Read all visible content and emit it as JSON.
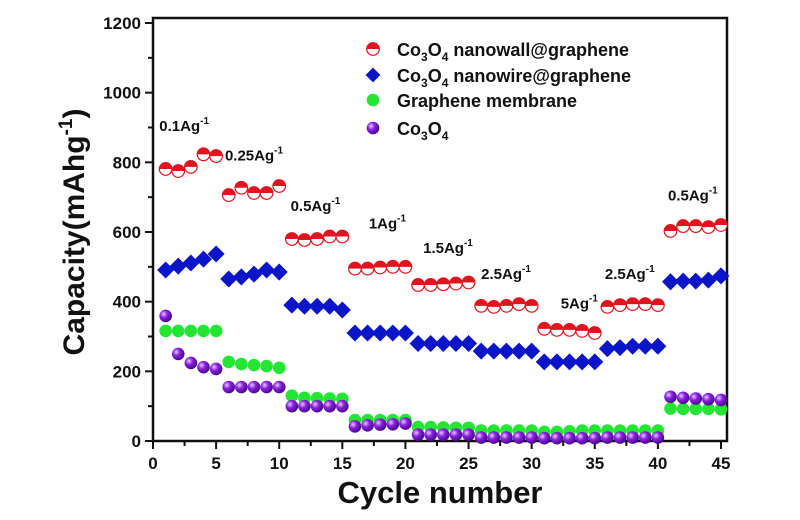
{
  "chart_data": {
    "type": "scatter",
    "title": "",
    "xlabel": "Cycle number",
    "ylabel": "Capacity(mAhg",
    "ylabel_sup": "-1",
    "ylabel_close": ")",
    "xlim": [
      0,
      45
    ],
    "ylim": [
      0,
      1200
    ],
    "xticks": [
      0,
      5,
      10,
      15,
      20,
      25,
      30,
      35,
      40,
      45
    ],
    "yticks": [
      0,
      200,
      400,
      600,
      800,
      1000,
      1200
    ],
    "grid": false,
    "legend_position": "top-right",
    "series": [
      {
        "name": "Co3O4 nanowall@graphene",
        "label_parts": [
          "Co",
          "3",
          "O",
          "4",
          " nanowall@graphene"
        ],
        "marker": "half-filled-circle",
        "color": "#e0141e",
        "x": [
          1,
          2,
          3,
          4,
          5,
          6,
          7,
          8,
          9,
          10,
          11,
          12,
          13,
          14,
          15,
          16,
          17,
          18,
          19,
          20,
          21,
          22,
          23,
          24,
          25,
          26,
          27,
          28,
          29,
          30,
          31,
          32,
          33,
          34,
          35,
          36,
          37,
          38,
          39,
          40,
          41,
          42,
          43,
          44,
          45
        ],
        "values": [
          781,
          775,
          787,
          823,
          818,
          706,
          727,
          712,
          712,
          732,
          580,
          577,
          580,
          587,
          587,
          495,
          495,
          498,
          500,
          500,
          448,
          448,
          450,
          452,
          455,
          388,
          385,
          388,
          393,
          388,
          322,
          319,
          319,
          316,
          310,
          385,
          390,
          393,
          393,
          390,
          603,
          617,
          617,
          614,
          620
        ]
      },
      {
        "name": "Co3O4 nanowire@graphene",
        "label_parts": [
          "Co",
          "3",
          "O",
          "4",
          " nanowire@graphene"
        ],
        "marker": "diamond",
        "color": "#0a14c8",
        "x": [
          1,
          2,
          3,
          4,
          5,
          6,
          7,
          8,
          9,
          10,
          11,
          12,
          13,
          14,
          15,
          16,
          17,
          18,
          19,
          20,
          21,
          22,
          23,
          24,
          25,
          26,
          27,
          28,
          29,
          30,
          31,
          32,
          33,
          34,
          35,
          36,
          37,
          38,
          39,
          40,
          41,
          42,
          43,
          44,
          45
        ],
        "values": [
          491,
          502,
          511,
          522,
          537,
          465,
          471,
          479,
          491,
          485,
          390,
          387,
          387,
          387,
          376,
          310,
          310,
          310,
          310,
          310,
          280,
          280,
          280,
          280,
          280,
          258,
          258,
          258,
          258,
          258,
          227,
          227,
          227,
          227,
          227,
          265,
          268,
          272,
          272,
          272,
          457,
          459,
          459,
          462,
          474
        ]
      },
      {
        "name": "Graphene membrane",
        "label_parts": [
          "Graphene membrane"
        ],
        "marker": "circle",
        "color": "#22e632",
        "x": [
          1,
          2,
          3,
          4,
          5,
          6,
          7,
          8,
          9,
          10,
          11,
          12,
          13,
          14,
          15,
          16,
          17,
          18,
          19,
          20,
          21,
          22,
          23,
          24,
          25,
          26,
          27,
          28,
          29,
          30,
          31,
          32,
          33,
          34,
          35,
          36,
          37,
          38,
          39,
          40,
          41,
          42,
          43,
          44,
          45
        ],
        "values": [
          316,
          316,
          316,
          316,
          316,
          227,
          221,
          218,
          215,
          210,
          130,
          124,
          123,
          122,
          121,
          60,
          60,
          60,
          60,
          60,
          40,
          40,
          39,
          38,
          38,
          30,
          30,
          30,
          30,
          30,
          26,
          26,
          28,
          30,
          30,
          30,
          30,
          30,
          30,
          30,
          93,
          92,
          92,
          92,
          91
        ]
      },
      {
        "name": "Co3O4",
        "label_parts": [
          "Co",
          "3",
          "O",
          "4",
          ""
        ],
        "marker": "sphere",
        "color": "#8a1fe0",
        "x": [
          1,
          2,
          3,
          4,
          5,
          6,
          7,
          8,
          9,
          10,
          11,
          12,
          13,
          14,
          15,
          16,
          17,
          18,
          19,
          20,
          21,
          22,
          23,
          24,
          25,
          26,
          27,
          28,
          29,
          30,
          31,
          32,
          33,
          34,
          35,
          36,
          37,
          38,
          39,
          40,
          41,
          42,
          43,
          44,
          45
        ],
        "values": [
          359,
          250,
          224,
          212,
          207,
          155,
          155,
          155,
          155,
          155,
          100,
          100,
          100,
          100,
          100,
          42,
          45,
          47,
          48,
          50,
          18,
          18,
          18,
          18,
          18,
          10,
          10,
          10,
          10,
          10,
          8,
          8,
          8,
          8,
          8,
          10,
          10,
          10,
          10,
          10,
          127,
          124,
          122,
          120,
          118
        ]
      }
    ],
    "annotations": [
      {
        "text": "0.1Ag",
        "sup": "-1",
        "x": 0.5,
        "y": 890
      },
      {
        "text": "0.25Ag",
        "sup": "-1",
        "x": 5.7,
        "y": 805
      },
      {
        "text": "0.5Ag",
        "sup": "-1",
        "x": 10.9,
        "y": 660
      },
      {
        "text": "1Ag",
        "sup": "-1",
        "x": 17.1,
        "y": 610
      },
      {
        "text": "1.5Ag",
        "sup": "-1",
        "x": 21.4,
        "y": 540
      },
      {
        "text": "2.5Ag",
        "sup": "-1",
        "x": 26.0,
        "y": 465
      },
      {
        "text": "5Ag",
        "sup": "-1",
        "x": 32.3,
        "y": 380
      },
      {
        "text": "2.5Ag",
        "sup": "-1",
        "x": 35.8,
        "y": 465
      },
      {
        "text": "0.5Ag",
        "sup": "-1",
        "x": 40.8,
        "y": 690
      }
    ]
  }
}
